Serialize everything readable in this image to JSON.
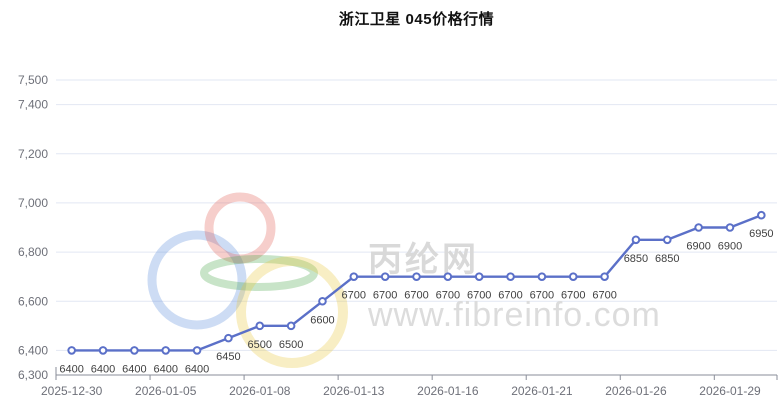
{
  "title": "浙江卫星 045价格行情",
  "watermark": {
    "brand_name": "丙纶网",
    "brand_site": "www.fibreinfo.com",
    "logo_ring_colors": {
      "blue": "#5b8bd9",
      "red": "#e05c52",
      "green": "#4aa44a",
      "yellow": "#e9c63d"
    }
  },
  "colors": {
    "series_line": "#5b70c8",
    "marker_fill": "#ffffff",
    "grid_line": "#e2e7f3",
    "axis_line": "#8a8e99",
    "axis_label": "#6e7079",
    "data_label": "#404040",
    "title_text": "#111111",
    "watermark_text": "#d9d9d9"
  },
  "chart_data": {
    "type": "line",
    "title": "浙江卫星 045价格行情",
    "legend": false,
    "grid": true,
    "point_count": 23,
    "series": [
      {
        "name": "浙江卫星 045",
        "color": "#5b70c8",
        "values": [
          6400,
          6400,
          6400,
          6400,
          6400,
          6450,
          6500,
          6500,
          6600,
          6700,
          6700,
          6700,
          6700,
          6700,
          6700,
          6700,
          6700,
          6700,
          6850,
          6850,
          6900,
          6900,
          6950
        ]
      }
    ],
    "point_labels_visible": true,
    "x_axis": {
      "tick_labels": [
        "2025-12-30",
        "2026-01-05",
        "2026-01-08",
        "2026-01-13",
        "2026-01-16",
        "2026-01-21",
        "2026-01-26",
        "2026-01-29"
      ],
      "tick_label_indices": [
        0,
        3,
        6,
        9,
        12,
        15,
        18,
        21
      ]
    },
    "y_axis": {
      "min": 6300,
      "max": 7500,
      "tick_values": [
        6300,
        6400,
        6600,
        6800,
        7000,
        7200,
        7400,
        7500
      ],
      "tick_labels": [
        "6,300",
        "6,400",
        "6,600",
        "6,800",
        "7,000",
        "7,200",
        "7,400",
        "7,500"
      ]
    }
  }
}
